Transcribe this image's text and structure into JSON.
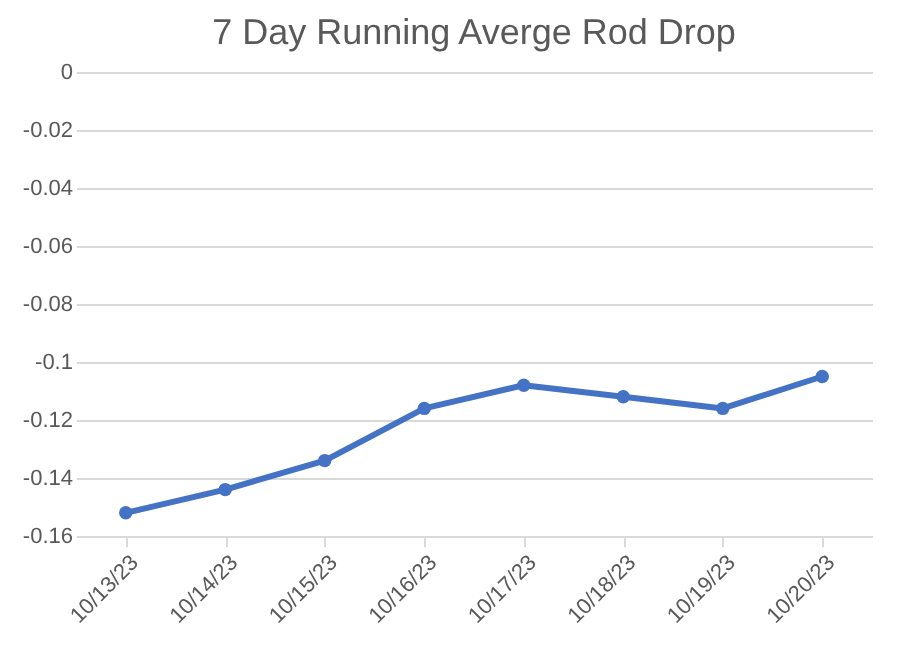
{
  "chart_data": {
    "type": "line",
    "title": "7 Day Running Averge Rod Drop",
    "categories": [
      "10/13/23",
      "10/14/23",
      "10/15/23",
      "10/16/23",
      "10/17/23",
      "10/18/23",
      "10/19/23",
      "10/20/23"
    ],
    "series": [
      {
        "color": "#4472c4",
        "values": [
          -0.152,
          -0.144,
          -0.134,
          -0.116,
          -0.108,
          -0.112,
          -0.116,
          -0.105
        ]
      }
    ],
    "ylim": [
      -0.16,
      0
    ],
    "yticks": [
      -0.16,
      -0.14,
      -0.12,
      -0.1,
      -0.08,
      -0.06,
      -0.04,
      -0.02,
      0
    ],
    "grid": "y",
    "legend": false,
    "marker": "circle",
    "line_style": "solid"
  }
}
